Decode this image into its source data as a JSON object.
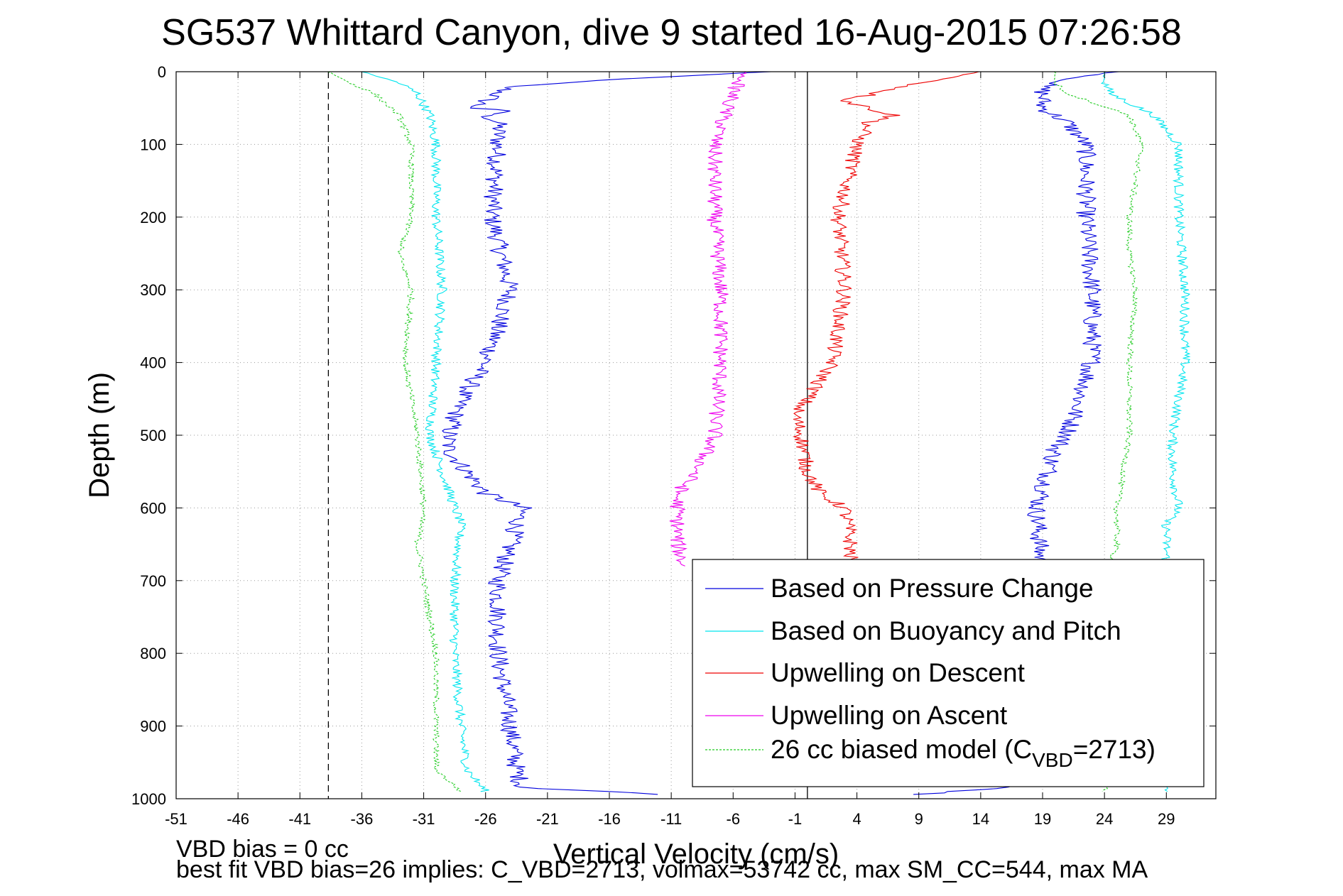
{
  "chart_data": {
    "type": "line",
    "title": "SG537 Whittard Canyon, dive 9 started 16-Aug-2015 07:26:58",
    "xlabel": "Vertical Velocity (cm/s)",
    "ylabel": "Depth (m)",
    "xlim": [
      -51,
      33
    ],
    "ylim": [
      1000,
      0
    ],
    "x_ticks": [
      -51,
      -46,
      -41,
      -36,
      -31,
      -26,
      -21,
      -16,
      -11,
      -6,
      -1,
      4,
      9,
      14,
      19,
      24,
      29
    ],
    "y_ticks": [
      0,
      100,
      200,
      300,
      400,
      500,
      600,
      700,
      800,
      900,
      1000
    ],
    "grid": "on (dotted)",
    "legend_position": "bottom-right",
    "reference_lines": [
      {
        "x": -38.7,
        "style": "dashed",
        "color": "#000000"
      },
      {
        "x": 0,
        "style": "solid",
        "color": "#000000"
      }
    ],
    "series": [
      {
        "name": "Based on Pressure Change",
        "color": "#0000dd",
        "depth": [
          0,
          10,
          20,
          50,
          55,
          60,
          70,
          100,
          200,
          300,
          400,
          450,
          500,
          520,
          580,
          600,
          700,
          800,
          900,
          960,
          985,
          995
        ],
        "values_left": [
          -3,
          -15,
          -24,
          -27,
          -24,
          -26,
          -25,
          -25,
          -25.5,
          -24,
          -26,
          -28,
          -29,
          -29,
          -26,
          -23,
          -25,
          -25,
          -24,
          -23.5,
          -23,
          -10
        ],
        "values_right": [
          25,
          21,
          19,
          19,
          19.5,
          20,
          21,
          22.5,
          22.5,
          23,
          23,
          22,
          21,
          20,
          19,
          18.5,
          19,
          19,
          19,
          18,
          16,
          8
        ]
      },
      {
        "name": "Based on Buoyancy and Pitch",
        "color": "#00e5ee",
        "depth": [
          0,
          15,
          30,
          60,
          100,
          200,
          300,
          400,
          500,
          550,
          600,
          620,
          700,
          800,
          900,
          960,
          990
        ],
        "values_left": [
          -36,
          -33,
          -31.5,
          -30.5,
          -30,
          -30,
          -29.5,
          -30,
          -30.5,
          -29.5,
          -28.5,
          -28,
          -28.5,
          -28.5,
          -28,
          -27.5,
          -26
        ],
        "values_right": [
          24,
          24,
          24.5,
          28,
          30,
          30,
          30.5,
          30.5,
          29.5,
          29.5,
          30,
          29,
          29,
          29,
          29,
          29,
          29
        ]
      },
      {
        "name": "Upwelling on Descent",
        "color": "#ee0000",
        "depth": [
          0,
          20,
          40,
          55,
          60,
          70,
          100,
          200,
          300,
          400,
          450,
          470,
          500,
          550,
          580,
          600,
          650,
          680
        ],
        "values": [
          14,
          8,
          3,
          6,
          7,
          5,
          4,
          2.5,
          3,
          2,
          0,
          -1,
          -0.5,
          0,
          1,
          3,
          3.5,
          3.5
        ]
      },
      {
        "name": "Upwelling on Ascent",
        "color": "#ee00ee",
        "depth": [
          0,
          10,
          30,
          50,
          100,
          200,
          300,
          400,
          500,
          550,
          580,
          600,
          650,
          680
        ],
        "values": [
          -5,
          -5.5,
          -6,
          -6.5,
          -7.5,
          -7.5,
          -7,
          -7,
          -7.5,
          -9,
          -10.5,
          -10.5,
          -10.5,
          -10
        ]
      },
      {
        "name": "26 cc biased model (C_VBD=2713)",
        "color": "#22cc22",
        "depth": [
          0,
          15,
          30,
          60,
          100,
          200,
          250,
          300,
          400,
          500,
          600,
          650,
          700,
          800,
          900,
          960,
          990
        ],
        "values_left": [
          -38.7,
          -37,
          -35,
          -33,
          -32,
          -32,
          -33,
          -32,
          -32.5,
          -31.5,
          -31,
          -31.5,
          -31,
          -30,
          -30,
          -30,
          -28
        ],
        "values_right": [
          20,
          20,
          21,
          26,
          27,
          26,
          26,
          26.5,
          26,
          26,
          25,
          25,
          24,
          24,
          24,
          24,
          24
        ]
      }
    ],
    "legend": [
      {
        "label": "Based on Pressure Change",
        "color": "#0000dd",
        "style": "solid"
      },
      {
        "label": "Based on Buoyancy and Pitch",
        "color": "#00e5ee",
        "style": "solid"
      },
      {
        "label": "Upwelling on Descent",
        "color": "#ee0000",
        "style": "solid"
      },
      {
        "label": "Upwelling on Ascent",
        "color": "#ee00ee",
        "style": "solid"
      },
      {
        "label": "26 cc biased model (C",
        "sub": "VBD",
        "suffix": "=2713)",
        "color": "#22cc22",
        "style": "dashed"
      }
    ]
  },
  "footnotes": {
    "line1": "VBD bias = 0 cc",
    "line2": "best fit VBD bias=26 implies: C_VBD=2713, volmax=53742 cc, max SM_CC=544, max MA"
  }
}
